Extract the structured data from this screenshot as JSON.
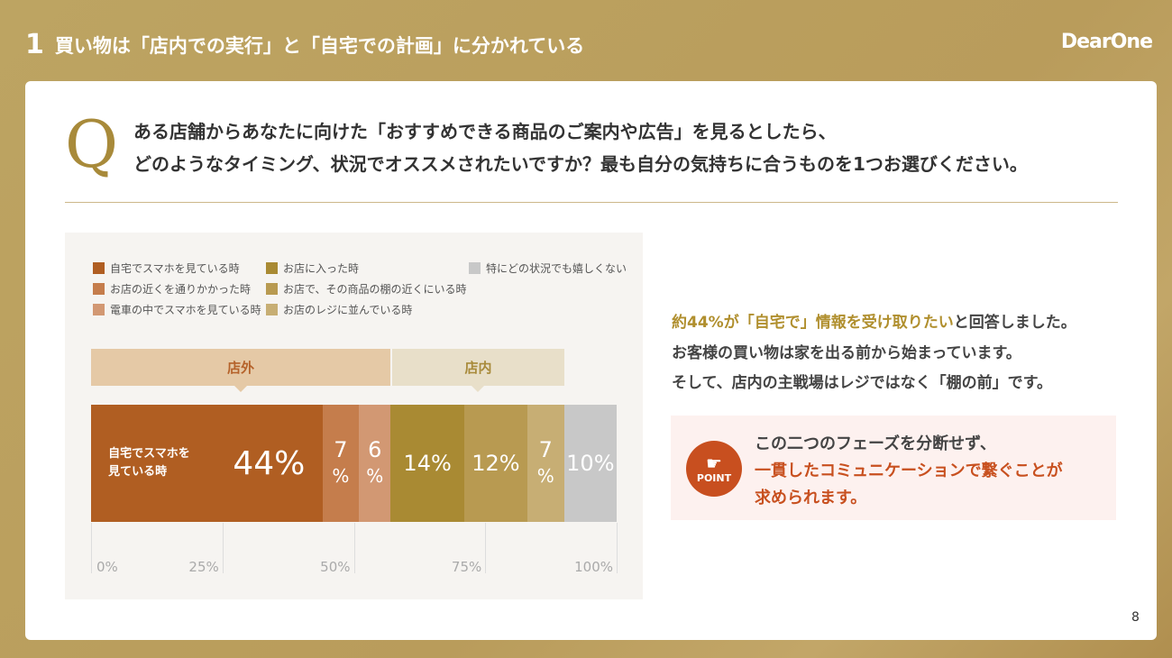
{
  "header": {
    "number": "1",
    "title": "買い物は「店内での実行」と「自宅での計画」に分かれている",
    "logo": "DearOne"
  },
  "question": {
    "mark": "Q",
    "line1": "ある店舗からあなたに向けた「おすすめできる商品のご案内や広告」を見るとしたら、",
    "line2": "どのようなタイミング、状況でオススメされたいですか？最も自分の気持ちに合うものを1つお選びください。"
  },
  "chart_data": {
    "type": "bar",
    "stacked": true,
    "orientation": "horizontal",
    "legend": [
      {
        "label": "自宅でスマホを見ている時",
        "color": "#b05e22"
      },
      {
        "label": "お店の近くを通りかかった時",
        "color": "#c57d4c"
      },
      {
        "label": "電車の中でスマホを見ている時",
        "color": "#d29873"
      },
      {
        "label": "お店に入った時",
        "color": "#a98a33"
      },
      {
        "label": "お店で、その商品の棚の近くにいる時",
        "color": "#b89a51"
      },
      {
        "label": "お店のレジに並んでいる時",
        "color": "#c7ae74"
      },
      {
        "label": "特にどの状況でも嬉しくない",
        "color": "#c8c8c8"
      }
    ],
    "values": [
      44,
      7,
      6,
      14,
      12,
      7,
      10
    ],
    "segment_labels": [
      "44%",
      "7%",
      "6%",
      "14%",
      "12%",
      "7%",
      "10%"
    ],
    "first_segment_text": "自宅でスマホを見ている時",
    "groups": [
      {
        "label": "店外",
        "from": 0,
        "to": 57
      },
      {
        "label": "店内",
        "from": 57,
        "to": 90
      }
    ],
    "xlim": [
      0,
      100
    ],
    "xticks": [
      "0%",
      "25%",
      "50%",
      "75%",
      "100%"
    ]
  },
  "findings": {
    "highlight": "約44%が「自宅で」情報を受け取りたい",
    "line1_rest": "と回答しました。",
    "line2": "お客様の買い物は家を出る前から始まっています。",
    "line3": "そして、店内の主戦場はレジではなく「棚の前」です。"
  },
  "point": {
    "badge": "POINT",
    "line1": "この二つのフェーズを分断せず、",
    "line2": "一貫したコミュニケーションで繋ぐことが",
    "line3": "求められます。"
  },
  "page_number": "8"
}
